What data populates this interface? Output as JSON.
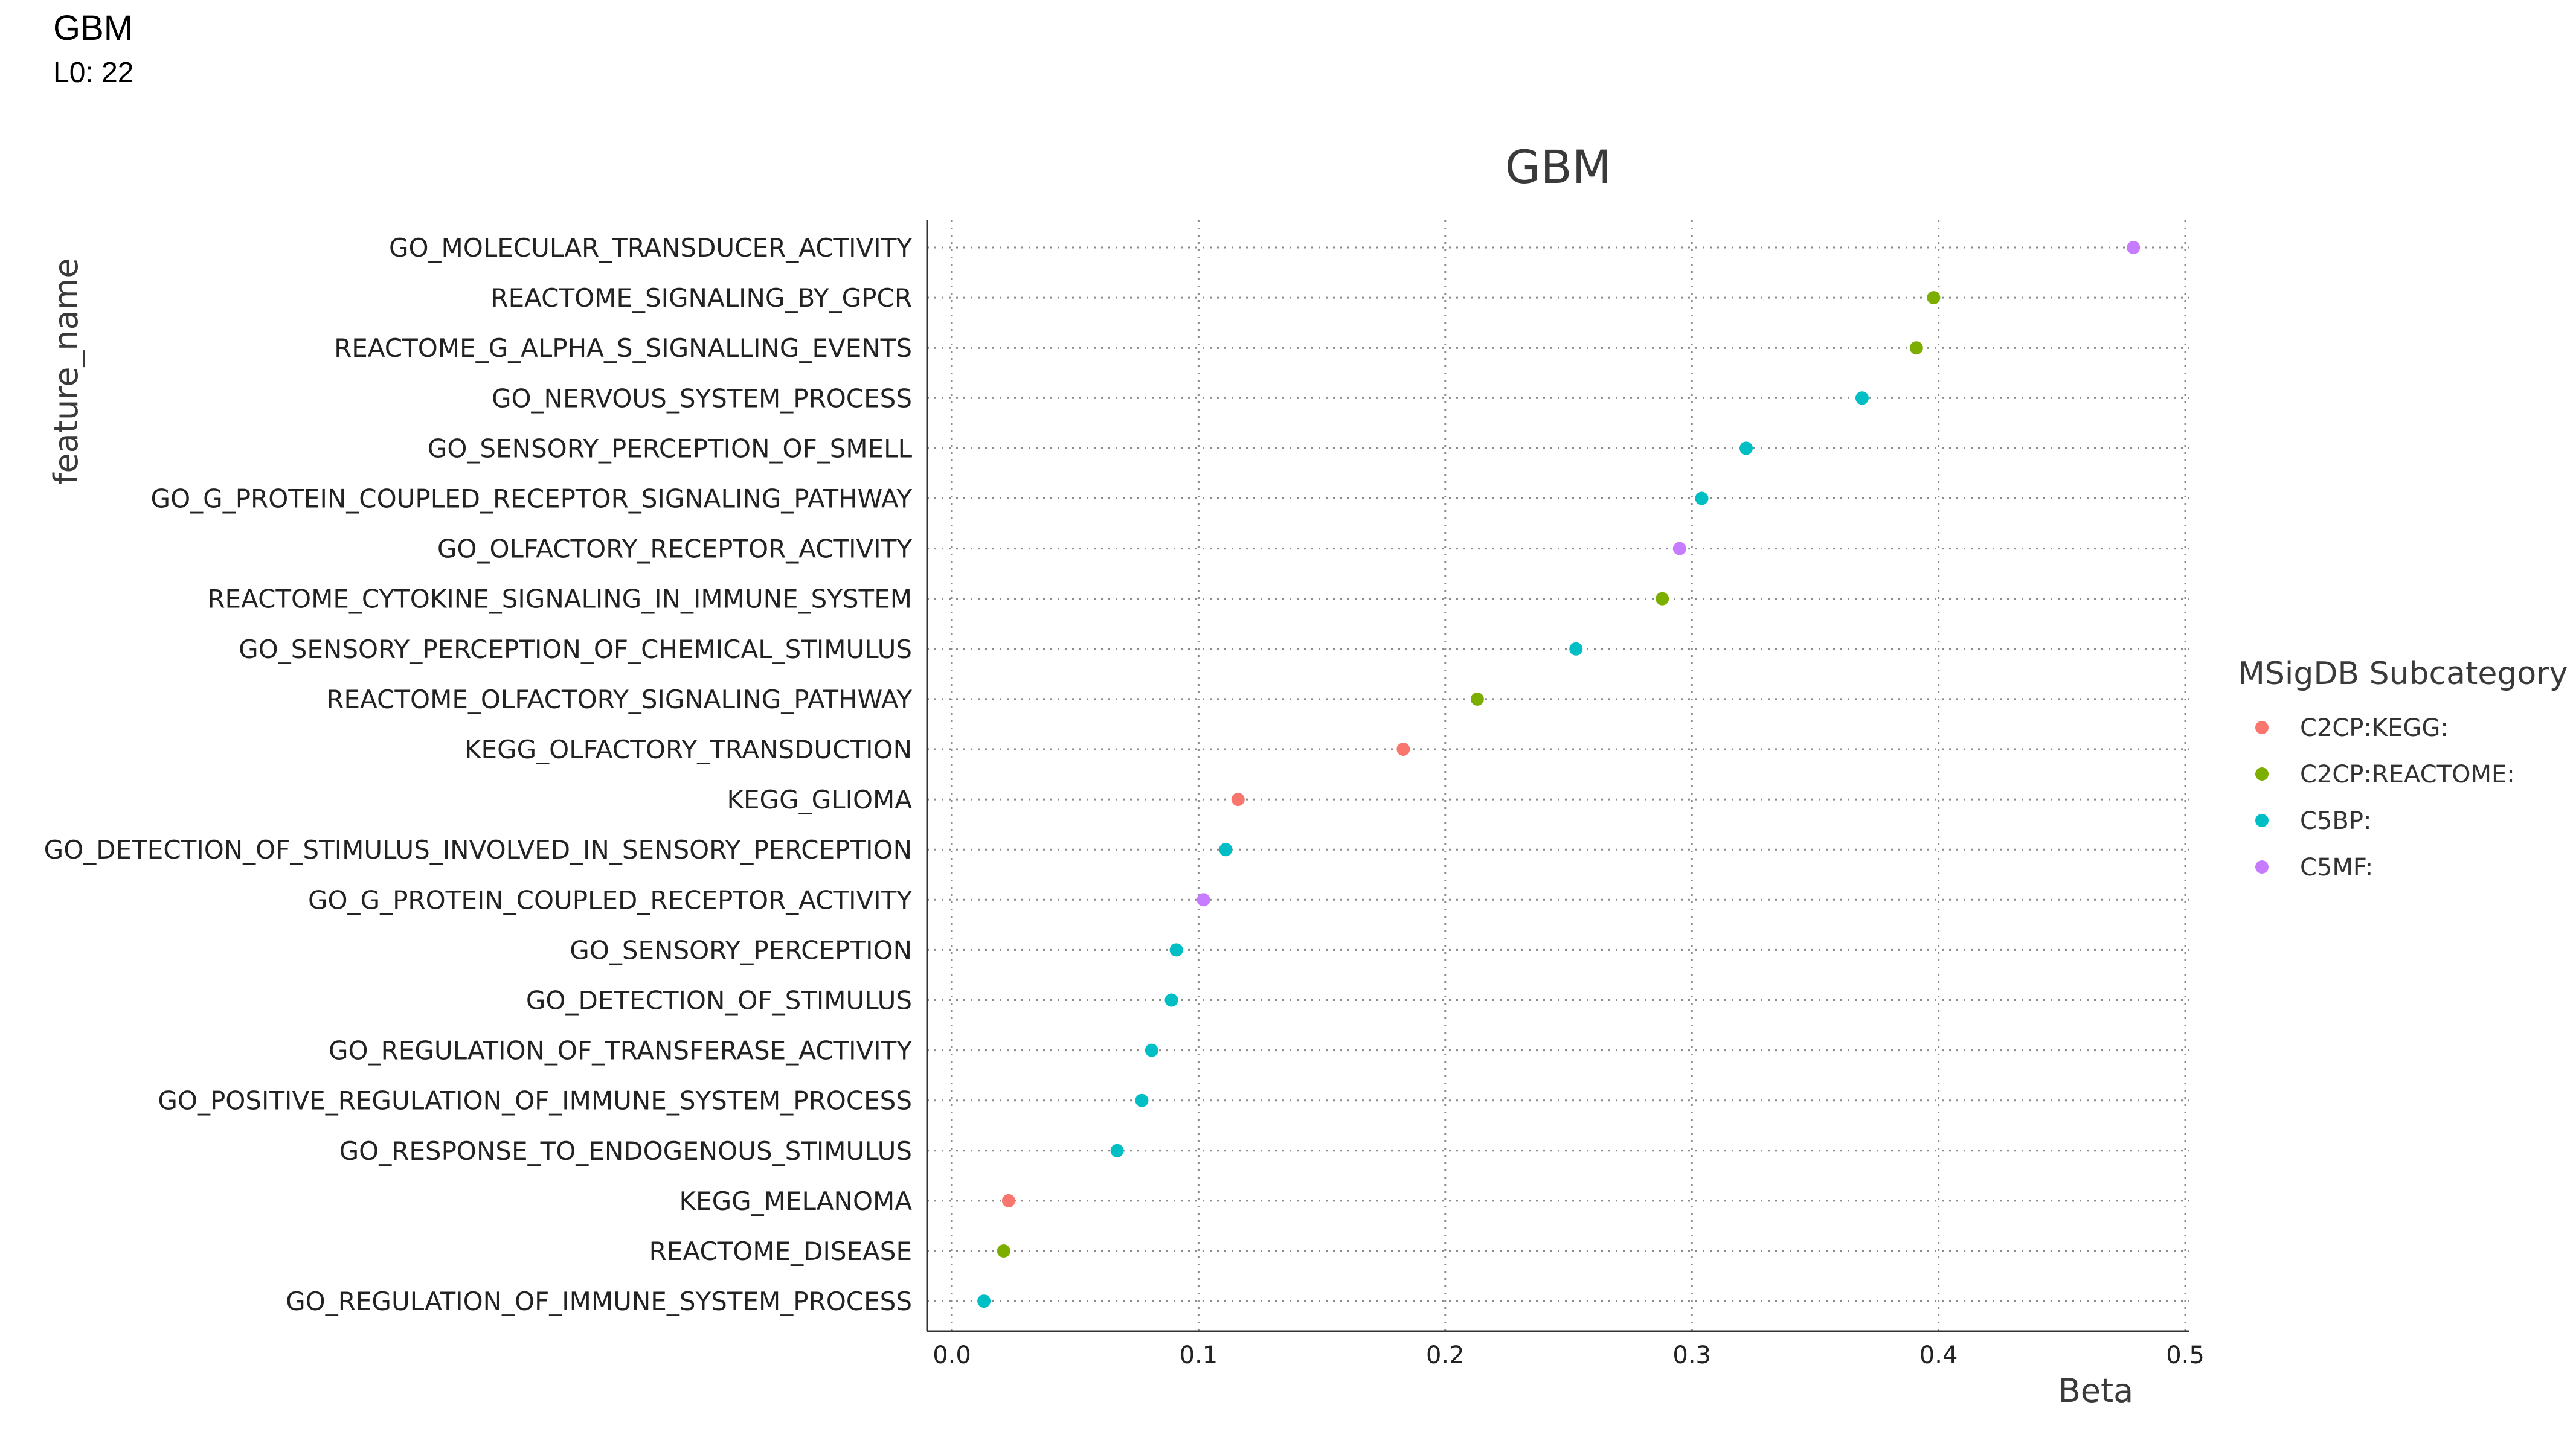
{
  "header": {
    "title": "GBM",
    "subtitle": "L0: 22"
  },
  "chart_data": {
    "type": "scatter",
    "title": "GBM",
    "xlabel": "Beta",
    "ylabel": "feature_name",
    "xlim": [
      -0.01,
      0.5
    ],
    "xticks": [
      0.0,
      0.1,
      0.2,
      0.3,
      0.4,
      0.5
    ],
    "xtick_labels": [
      "0.0",
      "0.1",
      "0.2",
      "0.3",
      "0.4",
      "0.5"
    ],
    "grid": true,
    "legend": {
      "title": "MSigDB Subcategory",
      "placement": "right",
      "entries": [
        "C2CP:KEGG:",
        "C2CP:REACTOME:",
        "C5BP:",
        "C5MF:"
      ]
    },
    "colors": {
      "C2CP:KEGG:": "#F8766D",
      "C2CP:REACTOME:": "#7CAE00",
      "C5BP:": "#00BFC4",
      "C5MF:": "#C77CFF"
    },
    "points": [
      {
        "feature": "GO_MOLECULAR_TRANSDUCER_ACTIVITY",
        "beta": 0.479,
        "category": "C5MF:"
      },
      {
        "feature": "REACTOME_SIGNALING_BY_GPCR",
        "beta": 0.398,
        "category": "C2CP:REACTOME:"
      },
      {
        "feature": "REACTOME_G_ALPHA_S_SIGNALLING_EVENTS",
        "beta": 0.391,
        "category": "C2CP:REACTOME:"
      },
      {
        "feature": "GO_NERVOUS_SYSTEM_PROCESS",
        "beta": 0.369,
        "category": "C5BP:"
      },
      {
        "feature": "GO_SENSORY_PERCEPTION_OF_SMELL",
        "beta": 0.322,
        "category": "C5BP:"
      },
      {
        "feature": "GO_G_PROTEIN_COUPLED_RECEPTOR_SIGNALING_PATHWAY",
        "beta": 0.304,
        "category": "C5BP:"
      },
      {
        "feature": "GO_OLFACTORY_RECEPTOR_ACTIVITY",
        "beta": 0.295,
        "category": "C5MF:"
      },
      {
        "feature": "REACTOME_CYTOKINE_SIGNALING_IN_IMMUNE_SYSTEM",
        "beta": 0.288,
        "category": "C2CP:REACTOME:"
      },
      {
        "feature": "GO_SENSORY_PERCEPTION_OF_CHEMICAL_STIMULUS",
        "beta": 0.253,
        "category": "C5BP:"
      },
      {
        "feature": "REACTOME_OLFACTORY_SIGNALING_PATHWAY",
        "beta": 0.213,
        "category": "C2CP:REACTOME:"
      },
      {
        "feature": "KEGG_OLFACTORY_TRANSDUCTION",
        "beta": 0.183,
        "category": "C2CP:KEGG:"
      },
      {
        "feature": "KEGG_GLIOMA",
        "beta": 0.116,
        "category": "C2CP:KEGG:"
      },
      {
        "feature": "GO_DETECTION_OF_STIMULUS_INVOLVED_IN_SENSORY_PERCEPTION",
        "beta": 0.111,
        "category": "C5BP:"
      },
      {
        "feature": "GO_G_PROTEIN_COUPLED_RECEPTOR_ACTIVITY",
        "beta": 0.102,
        "category": "C5MF:"
      },
      {
        "feature": "GO_SENSORY_PERCEPTION",
        "beta": 0.091,
        "category": "C5BP:"
      },
      {
        "feature": "GO_DETECTION_OF_STIMULUS",
        "beta": 0.089,
        "category": "C5BP:"
      },
      {
        "feature": "GO_REGULATION_OF_TRANSFERASE_ACTIVITY",
        "beta": 0.081,
        "category": "C5BP:"
      },
      {
        "feature": "GO_POSITIVE_REGULATION_OF_IMMUNE_SYSTEM_PROCESS",
        "beta": 0.077,
        "category": "C5BP:"
      },
      {
        "feature": "GO_RESPONSE_TO_ENDOGENOUS_STIMULUS",
        "beta": 0.067,
        "category": "C5BP:"
      },
      {
        "feature": "KEGG_MELANOMA",
        "beta": 0.023,
        "category": "C2CP:KEGG:"
      },
      {
        "feature": "REACTOME_DISEASE",
        "beta": 0.021,
        "category": "C2CP:REACTOME:"
      },
      {
        "feature": "GO_REGULATION_OF_IMMUNE_SYSTEM_PROCESS",
        "beta": 0.013,
        "category": "C5BP:"
      }
    ]
  }
}
